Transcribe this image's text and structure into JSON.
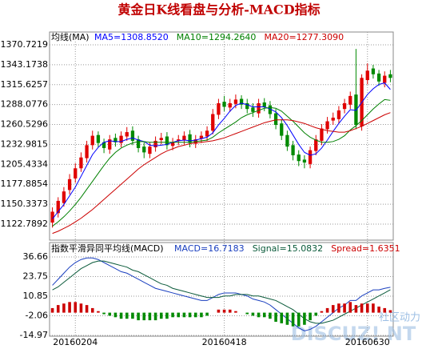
{
  "chart_data": [
    {
      "type": "candlestick",
      "title": "黄金日K线看盘与分析-MACD指标",
      "legend_title": "均线(MA)",
      "categories": [
        null,
        null,
        null,
        null,
        "20160204",
        null,
        null,
        null,
        null,
        null,
        null,
        null,
        null,
        null,
        null,
        null,
        null,
        null,
        null,
        null,
        null,
        null,
        null,
        null,
        null,
        null,
        null,
        null,
        null,
        null,
        "20160418",
        null,
        null,
        null,
        null,
        null,
        null,
        null,
        null,
        null,
        null,
        null,
        null,
        null,
        null,
        null,
        null,
        null,
        null,
        null,
        null,
        null,
        null,
        null,
        null,
        "20160630",
        null,
        null,
        null,
        null
      ],
      "open": [
        1125,
        1138,
        1152,
        1170,
        1186,
        1200,
        1214,
        1232,
        1246,
        1236,
        1226,
        1242,
        1235,
        1244,
        1252,
        1240,
        1230,
        1220,
        1229,
        1239,
        1244,
        1231,
        1238,
        1239,
        1247,
        1234,
        1241,
        1244,
        1252,
        1274,
        1292,
        1284,
        1289,
        1296,
        1290,
        1284,
        1276,
        1291,
        1287,
        1276,
        1262,
        1246,
        1232,
        1219,
        1212,
        1206,
        1224,
        1238,
        1254,
        1266,
        1268,
        1282,
        1288,
        1302,
        1258,
        1322,
        1338,
        1331,
        1318,
        1330
      ],
      "high": [
        1146,
        1160,
        1174,
        1192,
        1207,
        1222,
        1238,
        1252,
        1251,
        1241,
        1246,
        1248,
        1251,
        1257,
        1258,
        1245,
        1236,
        1236,
        1244,
        1249,
        1250,
        1242,
        1246,
        1251,
        1253,
        1246,
        1251,
        1258,
        1282,
        1296,
        1300,
        1296,
        1302,
        1301,
        1296,
        1290,
        1296,
        1297,
        1293,
        1282,
        1268,
        1252,
        1238,
        1225,
        1218,
        1230,
        1246,
        1261,
        1271,
        1277,
        1286,
        1296,
        1306,
        1365,
        1330,
        1345,
        1343,
        1336,
        1334,
        1336
      ],
      "low": [
        1118,
        1132,
        1147,
        1164,
        1180,
        1195,
        1208,
        1226,
        1229,
        1221,
        1220,
        1230,
        1229,
        1238,
        1232,
        1222,
        1214,
        1214,
        1223,
        1233,
        1226,
        1225,
        1232,
        1233,
        1229,
        1228,
        1235,
        1238,
        1247,
        1268,
        1279,
        1278,
        1283,
        1282,
        1276,
        1271,
        1270,
        1279,
        1269,
        1254,
        1239,
        1224,
        1211,
        1203,
        1200,
        1200,
        1218,
        1232,
        1248,
        1260,
        1262,
        1276,
        1282,
        1254,
        1252,
        1316,
        1324,
        1314,
        1312,
        1319
      ],
      "close": [
        1140,
        1155,
        1168,
        1185,
        1200,
        1215,
        1232,
        1245,
        1235,
        1228,
        1240,
        1236,
        1245,
        1250,
        1238,
        1228,
        1222,
        1230,
        1238,
        1242,
        1232,
        1236,
        1240,
        1245,
        1235,
        1240,
        1245,
        1252,
        1275,
        1290,
        1285,
        1290,
        1295,
        1288,
        1282,
        1278,
        1290,
        1285,
        1275,
        1260,
        1245,
        1230,
        1218,
        1210,
        1208,
        1225,
        1240,
        1255,
        1265,
        1270,
        1280,
        1290,
        1300,
        1260,
        1325,
        1335,
        1330,
        1320,
        1328,
        1325
      ],
      "up_color": "#e00000",
      "down_color": "#008a00",
      "series": [
        {
          "name": "MA5=1308.8520",
          "color": "#0000ff",
          "values": [
            1130,
            1140,
            1150,
            1162,
            1174,
            1189,
            1204,
            1219,
            1229,
            1236,
            1238,
            1237,
            1237,
            1240,
            1242,
            1239,
            1237,
            1232,
            1231,
            1232,
            1233,
            1236,
            1238,
            1239,
            1238,
            1239,
            1241,
            1243,
            1249,
            1260,
            1269,
            1279,
            1287,
            1290,
            1288,
            1285,
            1285,
            1285,
            1282,
            1278,
            1270,
            1259,
            1246,
            1233,
            1222,
            1218,
            1220,
            1228,
            1239,
            1251,
            1262,
            1272,
            1281,
            1280,
            1291,
            1302,
            1310,
            1316,
            1318,
            1309
          ]
        },
        {
          "name": "MA10=1294.2640",
          "color": "#008000",
          "values": [
            1120,
            1126,
            1133,
            1141,
            1150,
            1160,
            1171,
            1182,
            1193,
            1204,
            1214,
            1222,
            1228,
            1232,
            1235,
            1237,
            1237,
            1236,
            1236,
            1236,
            1236,
            1236,
            1236,
            1236,
            1236,
            1237,
            1238,
            1239,
            1243,
            1249,
            1254,
            1259,
            1264,
            1270,
            1274,
            1277,
            1280,
            1283,
            1284,
            1283,
            1279,
            1272,
            1265,
            1257,
            1249,
            1243,
            1239,
            1236,
            1236,
            1237,
            1240,
            1245,
            1253,
            1259,
            1266,
            1274,
            1282,
            1289,
            1295,
            1294
          ]
        },
        {
          "name": "MA20=1277.3090",
          "color": "#cc0000",
          "values": [
            1110,
            1113,
            1117,
            1121,
            1126,
            1131,
            1137,
            1143,
            1150,
            1157,
            1164,
            1171,
            1178,
            1185,
            1192,
            1199,
            1205,
            1210,
            1215,
            1220,
            1224,
            1227,
            1230,
            1232,
            1234,
            1235,
            1236,
            1237,
            1238,
            1240,
            1242,
            1245,
            1248,
            1251,
            1254,
            1257,
            1260,
            1263,
            1265,
            1267,
            1267,
            1267,
            1266,
            1264,
            1262,
            1259,
            1256,
            1254,
            1252,
            1251,
            1250,
            1250,
            1252,
            1255,
            1258,
            1262,
            1266,
            1270,
            1274,
            1277
          ]
        }
      ],
      "ylim": [
        1100.7,
        1388.4
      ],
      "yticks": [
        1370.7219,
        1343.1738,
        1315.6257,
        1288.0776,
        1260.5296,
        1232.9815,
        1205.4334,
        1177.8854,
        1150.3373,
        1122.7892
      ],
      "grid": true
    },
    {
      "type": "macd",
      "title": "指数平滑异同平均线(MACD)",
      "series": [
        {
          "name": "MACD=16.7183",
          "color": "#1a3fbf",
          "values": [
            18,
            22,
            26,
            30,
            33,
            35,
            36,
            36,
            35,
            33,
            31,
            29,
            27,
            26,
            24,
            22,
            20,
            18,
            16,
            15,
            14,
            13,
            12,
            11,
            10,
            9,
            8,
            8,
            10,
            12,
            13,
            13,
            13,
            12,
            11,
            9,
            8,
            7,
            5,
            2,
            -1,
            -4,
            -7,
            -10,
            -12,
            -11,
            -9,
            -6,
            -3,
            0,
            3,
            5,
            8,
            8,
            11,
            13,
            15,
            15,
            16,
            16.7183
          ]
        },
        {
          "name": "Signal=15.0832",
          "color": "#0a5a3a",
          "values": [
            15,
            17,
            20,
            23,
            26,
            29,
            31,
            33,
            34,
            34,
            33,
            32,
            31,
            30,
            28,
            27,
            25,
            23,
            21,
            19,
            18,
            16,
            15,
            14,
            13,
            12,
            11,
            10,
            10,
            10,
            11,
            11,
            12,
            12,
            12,
            11,
            11,
            10,
            9,
            8,
            6,
            4,
            2,
            -1,
            -4,
            -6,
            -7,
            -7,
            -6,
            -5,
            -3,
            -1,
            1,
            3,
            5,
            7,
            9,
            11,
            13,
            15.0832
          ]
        },
        {
          "name": "Spread=1.6351",
          "color": "#cc0000",
          "down_color": "#008a00",
          "style": "histogram",
          "values": [
            3,
            5,
            6,
            7,
            7,
            6,
            5,
            3,
            1,
            -1,
            -2,
            -3,
            -4,
            -4,
            -4,
            -5,
            -5,
            -5,
            -5,
            -4,
            -4,
            -3,
            -3,
            -3,
            -3,
            -3,
            -3,
            -2,
            0,
            2,
            2,
            2,
            1,
            0,
            -1,
            -2,
            -3,
            -3,
            -4,
            -6,
            -7,
            -8,
            -9,
            -9,
            -8,
            -5,
            -2,
            1,
            3,
            5,
            6,
            6,
            7,
            5,
            6,
            6,
            6,
            4,
            3,
            1.6351
          ]
        }
      ],
      "ylim": [
        -15.5,
        38.8
      ],
      "yticks": [
        36.66,
        23.75,
        10.85,
        -2.06,
        -14.97
      ],
      "grid": true
    }
  ],
  "watermark": {
    "text": "DISCUZ! NT",
    "subtext": "社区动力"
  }
}
